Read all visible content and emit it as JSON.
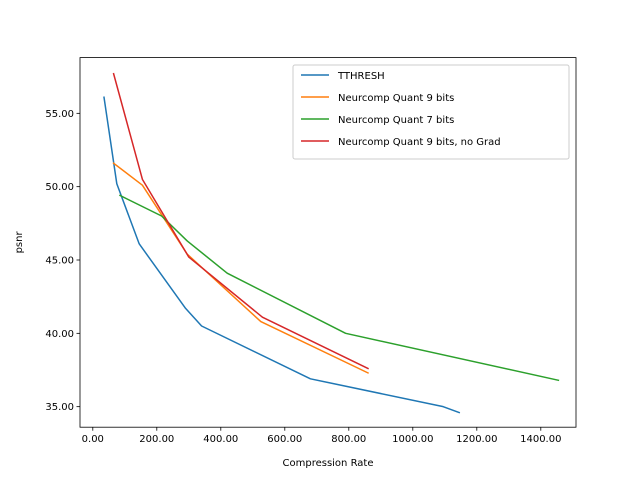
{
  "chart_data": {
    "type": "line",
    "xlabel": "Compression Rate",
    "ylabel": "psnr",
    "xlim": [
      -40,
      1510
    ],
    "ylim": [
      33.6,
      58.8
    ],
    "xticks": [
      0,
      200,
      400,
      600,
      800,
      1000,
      1200,
      1400
    ],
    "yticks": [
      35,
      40,
      45,
      50,
      55
    ],
    "tick_format": "2-decimals",
    "grid": false,
    "legend_position": "top-right",
    "series": [
      {
        "name": "TTHRESH",
        "color": "#1f77b4",
        "x": [
          35,
          75,
          145,
          290,
          340,
          680,
          1095,
          1145
        ],
        "y": [
          56.1,
          50.2,
          46.1,
          41.7,
          40.5,
          36.9,
          35.0,
          34.6
        ]
      },
      {
        "name": "Neurcomp Quant 9 bits",
        "color": "#ff7f0e",
        "x": [
          65,
          155,
          295,
          525,
          860
        ],
        "y": [
          51.6,
          50.1,
          45.4,
          40.8,
          37.3
        ]
      },
      {
        "name": "Neurcomp Quant 7 bits",
        "color": "#2ca02c",
        "x": [
          85,
          215,
          295,
          420,
          790,
          1455
        ],
        "y": [
          49.4,
          48.0,
          46.3,
          44.1,
          40.0,
          36.8
        ]
      },
      {
        "name": "Neurcomp Quant 9 bits, no Grad",
        "color": "#d62728",
        "x": [
          65,
          155,
          300,
          530,
          860
        ],
        "y": [
          57.7,
          50.5,
          45.2,
          41.1,
          37.6
        ]
      }
    ]
  }
}
